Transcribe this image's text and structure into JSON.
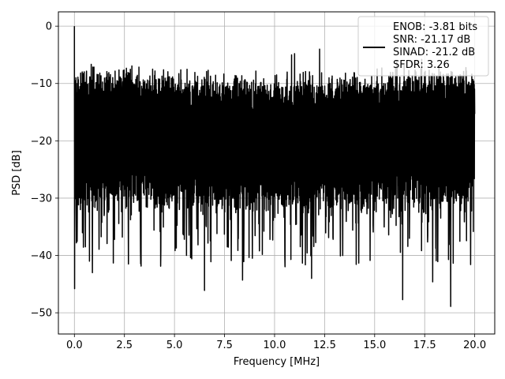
{
  "chart_data": {
    "type": "line",
    "title": "",
    "xlabel": "Frequency [MHz]",
    "ylabel": "PSD [dB]",
    "xlim": [
      -0.8,
      21.0
    ],
    "ylim": [
      -53.7,
      2.5
    ],
    "xticks": [
      0.0,
      2.5,
      5.0,
      7.5,
      10.0,
      12.5,
      15.0,
      17.5,
      20.0
    ],
    "xtick_labels": [
      "0.0",
      "2.5",
      "5.0",
      "7.5",
      "10.0",
      "12.5",
      "15.0",
      "17.5",
      "20.0"
    ],
    "yticks": [
      0,
      -10,
      -20,
      -30,
      -40,
      -50
    ],
    "ytick_labels": [
      "0",
      "−10",
      "−20",
      "−30",
      "−40",
      "−50"
    ],
    "grid": true,
    "legend_position": "top-right",
    "series": [
      {
        "name": "ENOB: -3.81 bits\nSNR: -21.17 dB\nSINAD: -21.2 dB\nSFDR: 3.26",
        "legend_lines": [
          "ENOB: -3.81 bits",
          "SNR: -21.17 dB",
          "SINAD: -21.2 dB",
          "SFDR: 3.26"
        ],
        "color": "#000000",
        "x_range": [
          0.0,
          20.0
        ],
        "num_points": 2048,
        "noise_floor_mean": -20.0,
        "noise_band_top": -12.0,
        "noise_band_bottom": -30.0,
        "points": [
          [
            0.0,
            0.0
          ],
          [
            0.01,
            -45.8
          ],
          [
            0.02,
            -9.5
          ],
          [
            0.05,
            -12.5
          ],
          [
            0.1,
            -37.8
          ],
          [
            0.3,
            -32.0
          ],
          [
            0.55,
            -38.5
          ],
          [
            0.9,
            -43.0
          ],
          [
            2.7,
            -41.5
          ],
          [
            5.6,
            -40.0
          ],
          [
            6.5,
            -46.1
          ],
          [
            8.4,
            -44.3
          ],
          [
            11.85,
            -44.0
          ],
          [
            16.1,
            -51.3
          ],
          [
            16.4,
            -47.7
          ],
          [
            17.9,
            -44.6
          ],
          [
            18.8,
            -48.9
          ],
          [
            12.25,
            -4.0
          ],
          [
            16.1,
            -6.0
          ],
          [
            10.85,
            -5.0
          ],
          [
            17.35,
            -5.8
          ],
          [
            11.0,
            -4.8
          ],
          [
            2.5,
            -18.5
          ],
          [
            5.0,
            -15.0
          ],
          [
            7.5,
            -20.0
          ],
          [
            10.0,
            -18.0
          ],
          [
            12.5,
            -22.0
          ],
          [
            15.0,
            -19.0
          ],
          [
            17.5,
            -21.0
          ],
          [
            20.0,
            -15.3
          ]
        ]
      }
    ]
  }
}
